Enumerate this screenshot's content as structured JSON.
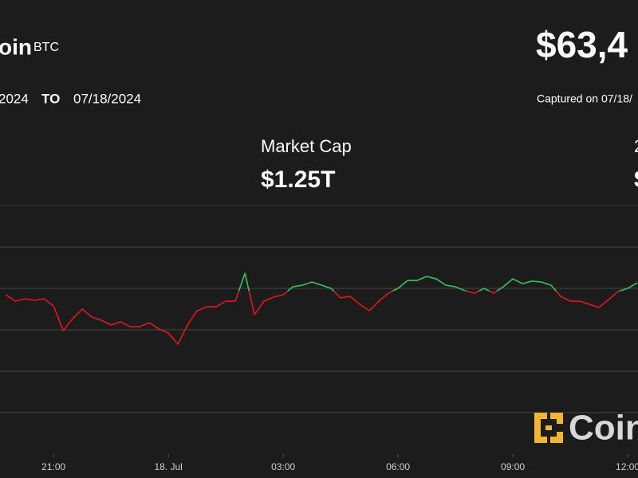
{
  "header": {
    "name": "oin",
    "ticker": "BTC",
    "price": "$63,4",
    "from": "2024",
    "to_label": "TO",
    "to": "07/18/2024",
    "captured": "Captured on 07/18/"
  },
  "stats": [
    {
      "label": "Market Cap",
      "value": "$1.25T"
    },
    {
      "label": "2",
      "value": "$"
    }
  ],
  "watermark": "Coin",
  "chart_data": {
    "type": "line",
    "x": [
      19.75,
      20,
      20.25,
      20.5,
      20.75,
      21,
      21.25,
      21.5,
      21.75,
      22,
      22.25,
      22.5,
      22.75,
      23,
      23.25,
      23.5,
      23.75,
      24,
      24.25,
      24.5,
      24.75,
      25,
      25.25,
      25.5,
      25.75,
      26,
      26.25,
      26.5,
      26.75,
      27,
      27.25,
      27.5,
      27.75,
      28,
      28.25,
      28.5,
      28.75,
      29,
      29.25,
      29.5,
      29.75,
      30,
      30.25,
      30.5,
      30.75,
      31,
      31.25,
      31.5,
      31.75,
      32,
      32.25,
      32.5,
      32.75,
      33,
      33.25,
      33.5,
      33.75,
      34,
      34.25,
      34.5,
      34.75,
      35,
      35.25,
      35.5,
      35.75,
      36,
      36.25
    ],
    "values": [
      64423,
      64346,
      64375,
      64356,
      64375,
      64288,
      63990,
      64135,
      64250,
      64154,
      64115,
      64058,
      64096,
      64038,
      64038,
      64087,
      64010,
      63962,
      63827,
      64058,
      64231,
      64279,
      64279,
      64346,
      64346,
      64683,
      64183,
      64346,
      64394,
      64423,
      64519,
      64538,
      64577,
      64538,
      64500,
      64385,
      64404,
      64308,
      64231,
      64346,
      64442,
      64500,
      64596,
      64596,
      64644,
      64615,
      64538,
      64519,
      64471,
      64442,
      64500,
      64442,
      64519,
      64615,
      64558,
      64587,
      64577,
      64538,
      64404,
      64346,
      64346,
      64308,
      64269,
      64365,
      64462,
      64500,
      64567
    ],
    "color_up": "#22c55e",
    "color_down": "#e5161b",
    "baseline": 64470,
    "xlim": [
      19.6,
      36.27
    ],
    "xticks": [
      {
        "value": 21,
        "label": "21:00"
      },
      {
        "value": 24,
        "label": "18. Jul"
      },
      {
        "value": 27,
        "label": "03:00"
      },
      {
        "value": 30,
        "label": "06:00"
      },
      {
        "value": 33,
        "label": "09:00"
      },
      {
        "value": 36,
        "label": "12:00"
      }
    ],
    "ylim": [
      62500,
      65500
    ],
    "yticks": [
      63000,
      63500,
      64000,
      64500,
      65000
    ],
    "grid": true
  }
}
